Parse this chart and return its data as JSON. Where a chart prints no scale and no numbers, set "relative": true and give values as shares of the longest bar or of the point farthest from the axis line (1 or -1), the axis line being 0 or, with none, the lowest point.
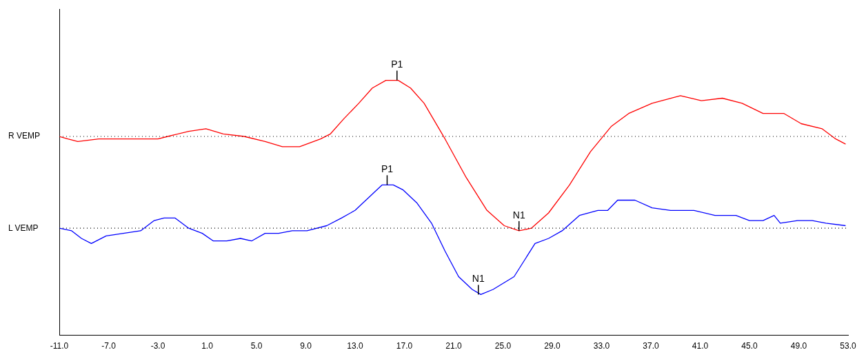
{
  "chart_data": {
    "type": "line",
    "relative": true,
    "legend": false,
    "grid": false,
    "marker": "none",
    "line_style": "solid",
    "xlim": [
      -11,
      53
    ],
    "xticks": [
      {
        "value": -11,
        "label": "-11.0"
      },
      {
        "value": -7,
        "label": "-7.0"
      },
      {
        "value": -3,
        "label": "-3.0"
      },
      {
        "value": 1,
        "label": "1.0"
      },
      {
        "value": 5,
        "label": "5.0"
      },
      {
        "value": 9,
        "label": "9.0"
      },
      {
        "value": 13,
        "label": "13.0"
      },
      {
        "value": 17,
        "label": "17.0"
      },
      {
        "value": 21,
        "label": "21.0"
      },
      {
        "value": 25,
        "label": "25.0"
      },
      {
        "value": 29,
        "label": "29.0"
      },
      {
        "value": 33,
        "label": "33.0"
      },
      {
        "value": 37,
        "label": "37.0"
      },
      {
        "value": 41,
        "label": "41.0"
      },
      {
        "value": 45,
        "label": "45.0"
      },
      {
        "value": 49,
        "label": "49.0"
      },
      {
        "value": 53,
        "label": "53.0"
      }
    ],
    "series": [
      {
        "color": "#ff0000",
        "x": [
          -11.0,
          -10.3,
          -9.5,
          -7.8,
          -6.7,
          -5.0,
          -3.0,
          -2.2,
          -0.5,
          0.9,
          2.3,
          4.0,
          5.7,
          7.1,
          8.5,
          10.2,
          11.0,
          12.1,
          13.3,
          14.4,
          15.5,
          16.5,
          17.5,
          18.6,
          20.3,
          22.0,
          23.7,
          25.1,
          26.3,
          27.3,
          28.7,
          30.4,
          32.1,
          33.8,
          35.2,
          37.1,
          39.4,
          41.1,
          42.8,
          44.4,
          46.1,
          47.8,
          49.2,
          50.9,
          52.0,
          52.8
        ],
        "values": [
          0.78,
          0.77,
          0.76,
          0.77,
          0.77,
          0.77,
          0.77,
          0.78,
          0.8,
          0.81,
          0.79,
          0.78,
          0.76,
          0.74,
          0.74,
          0.77,
          0.79,
          0.85,
          0.91,
          0.97,
          1.0,
          1.0,
          0.97,
          0.91,
          0.77,
          0.62,
          0.49,
          0.43,
          0.41,
          0.42,
          0.48,
          0.59,
          0.72,
          0.82,
          0.87,
          0.91,
          0.94,
          0.92,
          0.93,
          0.91,
          0.87,
          0.87,
          0.83,
          0.81,
          0.77,
          0.75
        ]
      },
      {
        "color": "#0000ff",
        "x": [
          -11.0,
          -10.0,
          -9.2,
          -8.4,
          -7.2,
          -5.8,
          -4.4,
          -3.3,
          -2.5,
          -1.6,
          -0.5,
          0.6,
          1.5,
          2.6,
          3.7,
          4.6,
          5.7,
          6.8,
          7.9,
          9.1,
          10.7,
          11.9,
          13.0,
          14.1,
          15.2,
          16.1,
          16.9,
          18.0,
          19.2,
          20.3,
          21.4,
          22.5,
          23.2,
          24.2,
          25.9,
          27.6,
          28.7,
          29.8,
          31.2,
          32.7,
          33.5,
          34.3,
          35.7,
          37.1,
          38.6,
          40.5,
          42.2,
          43.9,
          45.0,
          46.1,
          47.0,
          47.5,
          48.9,
          50.1,
          51.2,
          52.8
        ],
        "values": [
          0.42,
          0.41,
          0.38,
          0.36,
          0.39,
          0.4,
          0.41,
          0.45,
          0.46,
          0.46,
          0.42,
          0.4,
          0.37,
          0.37,
          0.38,
          0.37,
          0.4,
          0.4,
          0.41,
          0.41,
          0.43,
          0.46,
          0.49,
          0.54,
          0.59,
          0.59,
          0.57,
          0.52,
          0.44,
          0.33,
          0.23,
          0.18,
          0.16,
          0.18,
          0.23,
          0.36,
          0.38,
          0.41,
          0.47,
          0.49,
          0.49,
          0.53,
          0.53,
          0.5,
          0.49,
          0.49,
          0.47,
          0.47,
          0.45,
          0.45,
          0.47,
          0.44,
          0.45,
          0.45,
          0.44,
          0.43
        ]
      }
    ],
    "ref_lines": [
      {
        "axis": "y",
        "value": 0.78,
        "label": "R VEMP",
        "color": "#000000",
        "line_style": "dotted"
      },
      {
        "axis": "y",
        "value": 0.42,
        "label": "L VEMP",
        "color": "#000000",
        "line_style": "dotted"
      }
    ],
    "annotations": [
      {
        "text": "P1",
        "x": 16.4,
        "y": 1.0
      },
      {
        "text": "N1",
        "x": 26.3,
        "y": 0.41
      },
      {
        "text": "P1",
        "x": 15.6,
        "y": 0.59
      },
      {
        "text": "N1",
        "x": 23.0,
        "y": 0.16
      }
    ]
  }
}
